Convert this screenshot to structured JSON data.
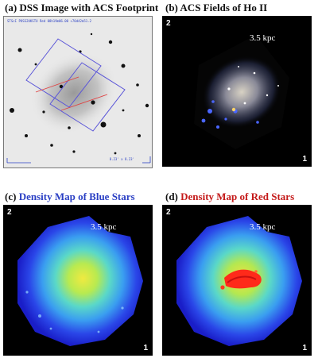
{
  "panel_a": {
    "caption": "(a) DSS Image with ACS Footprint",
    "header_text": "STScI POSS2UKSTU Red 08h19m06.00 +70d42m51.2",
    "bottom_left_text": "",
    "bottom_right_text": "8.23' x 8.23'"
  },
  "panel_b": {
    "caption": "(b) ACS Fields of Ho II",
    "scale": "3.5 kpc",
    "field_2": "2",
    "field_1": "1"
  },
  "panel_c": {
    "caption_prefix": "(c) ",
    "caption_highlight": "Density Map of Blue Stars",
    "scale": "3.5 kpc",
    "field_2": "2",
    "field_1": "1"
  },
  "panel_d": {
    "caption_prefix": "(d) ",
    "caption_highlight": "Density Map of Red Stars",
    "scale": "3.5 kpc",
    "field_2": "2",
    "field_1": "1"
  },
  "colors": {
    "caption_blue": "#2a3fc4",
    "caption_red": "#c41a1a",
    "footprint_blue": "#5a55d8",
    "footprint_red": "#e04040"
  }
}
